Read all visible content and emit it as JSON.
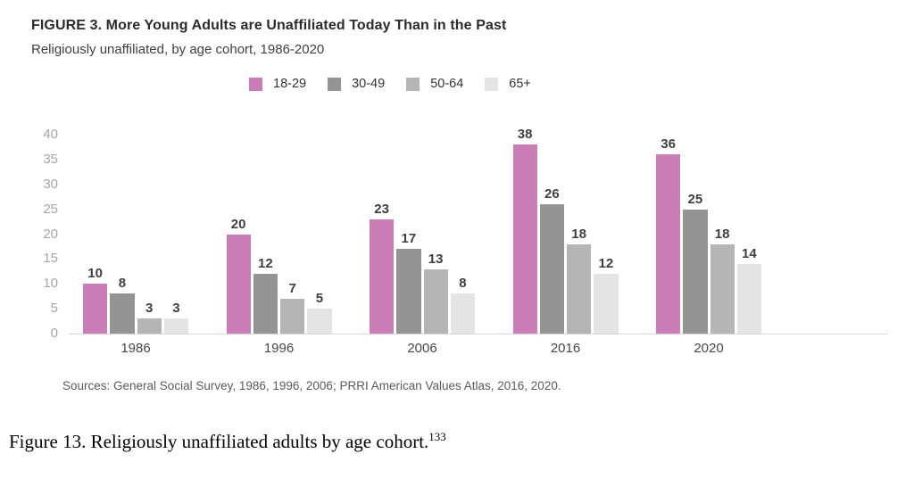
{
  "figure": {
    "title": "FIGURE 3. More Young Adults are Unaffiliated Today Than in the Past",
    "subtitle": "Religiously unaffiliated, by age cohort, 1986-2020",
    "sources": "Sources: General Social Survey, 1986, 1996, 2006; PRRI American Values Atlas, 2016, 2020.",
    "caption_text": "Figure 13. Religiously unaffiliated adults by age cohort.",
    "caption_footnote": "133"
  },
  "chart_data": {
    "type": "bar",
    "title": "FIGURE 3. More Young Adults are Unaffiliated Today Than in the Past",
    "subtitle": "Religiously unaffiliated, by age cohort, 1986-2020",
    "categories": [
      "1986",
      "1996",
      "2006",
      "2016",
      "2020"
    ],
    "series": [
      {
        "name": "18-29",
        "color": "#cb7db8",
        "values": [
          10,
          20,
          23,
          38,
          36
        ]
      },
      {
        "name": "30-49",
        "color": "#949494",
        "values": [
          8,
          12,
          17,
          26,
          25
        ]
      },
      {
        "name": "50-64",
        "color": "#b5b5b5",
        "values": [
          3,
          7,
          13,
          18,
          18
        ]
      },
      {
        "name": "65+",
        "color": "#e4e4e4",
        "values": [
          3,
          5,
          8,
          12,
          14
        ]
      }
    ],
    "ylim": [
      0,
      40
    ],
    "yticks": [
      0,
      5,
      10,
      15,
      20,
      25,
      30,
      35,
      40
    ],
    "grid": false,
    "data_labels": true,
    "legend_position": "top",
    "xlabel": "",
    "ylabel": ""
  }
}
